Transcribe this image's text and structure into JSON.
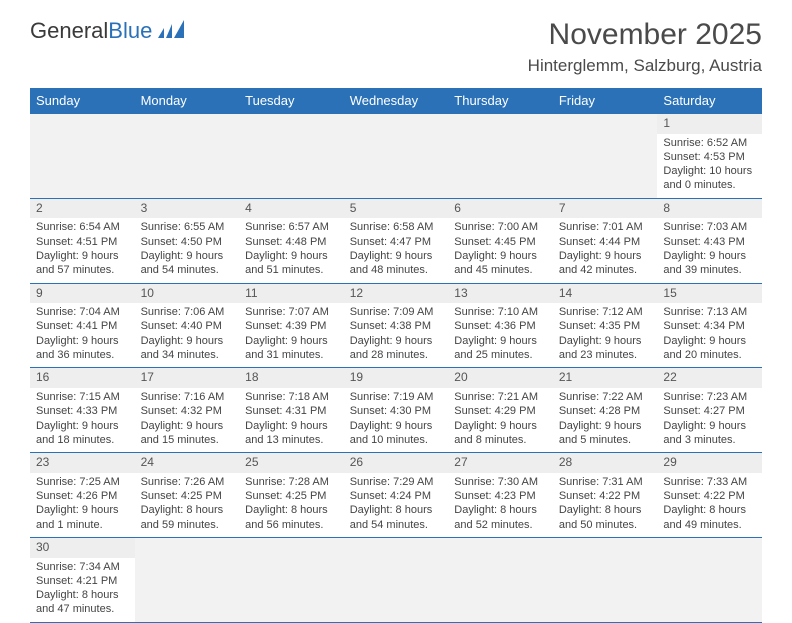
{
  "logo": {
    "general": "General",
    "blue": "Blue"
  },
  "title": "November 2025",
  "location": "Hinterglemm, Salzburg, Austria",
  "colors": {
    "header_bg": "#2a71b8",
    "header_fg": "#ffffff",
    "text": "#444444",
    "date_bg": "#eeeeee",
    "empty_bg": "#f2f2f2"
  },
  "days": [
    "Sunday",
    "Monday",
    "Tuesday",
    "Wednesday",
    "Thursday",
    "Friday",
    "Saturday"
  ],
  "weeks": [
    [
      null,
      null,
      null,
      null,
      null,
      null,
      {
        "n": "1",
        "sr": "Sunrise: 6:52 AM",
        "ss": "Sunset: 4:53 PM",
        "dl": "Daylight: 10 hours and 0 minutes."
      }
    ],
    [
      {
        "n": "2",
        "sr": "Sunrise: 6:54 AM",
        "ss": "Sunset: 4:51 PM",
        "dl": "Daylight: 9 hours and 57 minutes."
      },
      {
        "n": "3",
        "sr": "Sunrise: 6:55 AM",
        "ss": "Sunset: 4:50 PM",
        "dl": "Daylight: 9 hours and 54 minutes."
      },
      {
        "n": "4",
        "sr": "Sunrise: 6:57 AM",
        "ss": "Sunset: 4:48 PM",
        "dl": "Daylight: 9 hours and 51 minutes."
      },
      {
        "n": "5",
        "sr": "Sunrise: 6:58 AM",
        "ss": "Sunset: 4:47 PM",
        "dl": "Daylight: 9 hours and 48 minutes."
      },
      {
        "n": "6",
        "sr": "Sunrise: 7:00 AM",
        "ss": "Sunset: 4:45 PM",
        "dl": "Daylight: 9 hours and 45 minutes."
      },
      {
        "n": "7",
        "sr": "Sunrise: 7:01 AM",
        "ss": "Sunset: 4:44 PM",
        "dl": "Daylight: 9 hours and 42 minutes."
      },
      {
        "n": "8",
        "sr": "Sunrise: 7:03 AM",
        "ss": "Sunset: 4:43 PM",
        "dl": "Daylight: 9 hours and 39 minutes."
      }
    ],
    [
      {
        "n": "9",
        "sr": "Sunrise: 7:04 AM",
        "ss": "Sunset: 4:41 PM",
        "dl": "Daylight: 9 hours and 36 minutes."
      },
      {
        "n": "10",
        "sr": "Sunrise: 7:06 AM",
        "ss": "Sunset: 4:40 PM",
        "dl": "Daylight: 9 hours and 34 minutes."
      },
      {
        "n": "11",
        "sr": "Sunrise: 7:07 AM",
        "ss": "Sunset: 4:39 PM",
        "dl": "Daylight: 9 hours and 31 minutes."
      },
      {
        "n": "12",
        "sr": "Sunrise: 7:09 AM",
        "ss": "Sunset: 4:38 PM",
        "dl": "Daylight: 9 hours and 28 minutes."
      },
      {
        "n": "13",
        "sr": "Sunrise: 7:10 AM",
        "ss": "Sunset: 4:36 PM",
        "dl": "Daylight: 9 hours and 25 minutes."
      },
      {
        "n": "14",
        "sr": "Sunrise: 7:12 AM",
        "ss": "Sunset: 4:35 PM",
        "dl": "Daylight: 9 hours and 23 minutes."
      },
      {
        "n": "15",
        "sr": "Sunrise: 7:13 AM",
        "ss": "Sunset: 4:34 PM",
        "dl": "Daylight: 9 hours and 20 minutes."
      }
    ],
    [
      {
        "n": "16",
        "sr": "Sunrise: 7:15 AM",
        "ss": "Sunset: 4:33 PM",
        "dl": "Daylight: 9 hours and 18 minutes."
      },
      {
        "n": "17",
        "sr": "Sunrise: 7:16 AM",
        "ss": "Sunset: 4:32 PM",
        "dl": "Daylight: 9 hours and 15 minutes."
      },
      {
        "n": "18",
        "sr": "Sunrise: 7:18 AM",
        "ss": "Sunset: 4:31 PM",
        "dl": "Daylight: 9 hours and 13 minutes."
      },
      {
        "n": "19",
        "sr": "Sunrise: 7:19 AM",
        "ss": "Sunset: 4:30 PM",
        "dl": "Daylight: 9 hours and 10 minutes."
      },
      {
        "n": "20",
        "sr": "Sunrise: 7:21 AM",
        "ss": "Sunset: 4:29 PM",
        "dl": "Daylight: 9 hours and 8 minutes."
      },
      {
        "n": "21",
        "sr": "Sunrise: 7:22 AM",
        "ss": "Sunset: 4:28 PM",
        "dl": "Daylight: 9 hours and 5 minutes."
      },
      {
        "n": "22",
        "sr": "Sunrise: 7:23 AM",
        "ss": "Sunset: 4:27 PM",
        "dl": "Daylight: 9 hours and 3 minutes."
      }
    ],
    [
      {
        "n": "23",
        "sr": "Sunrise: 7:25 AM",
        "ss": "Sunset: 4:26 PM",
        "dl": "Daylight: 9 hours and 1 minute."
      },
      {
        "n": "24",
        "sr": "Sunrise: 7:26 AM",
        "ss": "Sunset: 4:25 PM",
        "dl": "Daylight: 8 hours and 59 minutes."
      },
      {
        "n": "25",
        "sr": "Sunrise: 7:28 AM",
        "ss": "Sunset: 4:25 PM",
        "dl": "Daylight: 8 hours and 56 minutes."
      },
      {
        "n": "26",
        "sr": "Sunrise: 7:29 AM",
        "ss": "Sunset: 4:24 PM",
        "dl": "Daylight: 8 hours and 54 minutes."
      },
      {
        "n": "27",
        "sr": "Sunrise: 7:30 AM",
        "ss": "Sunset: 4:23 PM",
        "dl": "Daylight: 8 hours and 52 minutes."
      },
      {
        "n": "28",
        "sr": "Sunrise: 7:31 AM",
        "ss": "Sunset: 4:22 PM",
        "dl": "Daylight: 8 hours and 50 minutes."
      },
      {
        "n": "29",
        "sr": "Sunrise: 7:33 AM",
        "ss": "Sunset: 4:22 PM",
        "dl": "Daylight: 8 hours and 49 minutes."
      }
    ],
    [
      {
        "n": "30",
        "sr": "Sunrise: 7:34 AM",
        "ss": "Sunset: 4:21 PM",
        "dl": "Daylight: 8 hours and 47 minutes."
      },
      null,
      null,
      null,
      null,
      null,
      null
    ]
  ]
}
